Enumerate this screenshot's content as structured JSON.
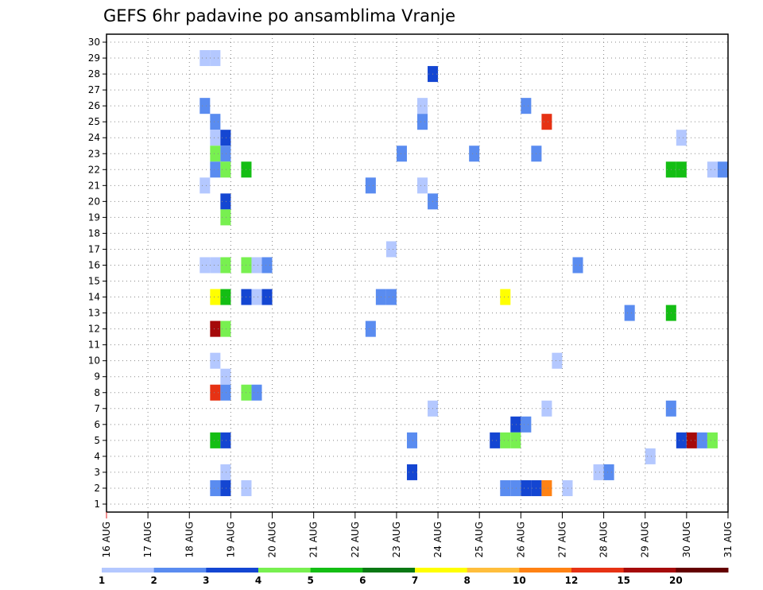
{
  "chart_data": {
    "type": "heatmap",
    "title": "GEFS 6hr padavine po ansamblima Vranje",
    "xlabel": "",
    "ylabel": "",
    "x_tick_labels": [
      "16 AUG",
      "17 AUG",
      "18 AUG",
      "19 AUG",
      "20 AUG",
      "21 AUG",
      "22 AUG",
      "23 AUG",
      "24 AUG",
      "25 AUG",
      "26 AUG",
      "27 AUG",
      "28 AUG",
      "29 AUG",
      "30 AUG",
      "31 AUG"
    ],
    "y_tick_labels": [
      "1",
      "2",
      "3",
      "4",
      "5",
      "6",
      "7",
      "8",
      "9",
      "10",
      "11",
      "12",
      "13",
      "14",
      "15",
      "16",
      "17",
      "18",
      "19",
      "20",
      "21",
      "22",
      "23",
      "24",
      "25",
      "26",
      "27",
      "28",
      "29",
      "30"
    ],
    "xlim_days": [
      16,
      31
    ],
    "ylim": [
      0.5,
      30.5
    ],
    "grid": true,
    "colorbar": {
      "placement": "bottom",
      "labels": [
        "1",
        "2",
        "3",
        "4",
        "5",
        "6",
        "7",
        "8",
        "10",
        "12",
        "15",
        "20"
      ],
      "colors": [
        "#b4c8ff",
        "#5a8cf0",
        "#1446d2",
        "#78f050",
        "#14be14",
        "#0a7814",
        "#ffff00",
        "#ffbe3c",
        "#ff8214",
        "#e63214",
        "#a50a0a",
        "#640000"
      ]
    },
    "cells": [
      [
        18.375,
        29,
        1
      ],
      [
        18.625,
        29,
        1
      ],
      [
        23.875,
        28,
        3
      ],
      [
        18.375,
        26,
        2
      ],
      [
        23.625,
        26,
        1
      ],
      [
        26.125,
        26,
        2
      ],
      [
        18.625,
        25,
        2
      ],
      [
        23.625,
        25,
        2
      ],
      [
        26.625,
        25,
        10
      ],
      [
        18.625,
        24,
        1
      ],
      [
        18.875,
        24,
        3
      ],
      [
        29.875,
        24,
        1
      ],
      [
        18.625,
        23,
        4
      ],
      [
        18.875,
        23,
        2
      ],
      [
        23.125,
        23,
        2
      ],
      [
        24.875,
        23,
        2
      ],
      [
        26.375,
        23,
        2
      ],
      [
        18.625,
        22,
        2
      ],
      [
        18.875,
        22,
        4
      ],
      [
        19.375,
        22,
        5
      ],
      [
        29.625,
        22,
        5
      ],
      [
        29.875,
        22,
        5
      ],
      [
        30.625,
        22,
        1
      ],
      [
        30.875,
        22,
        2
      ],
      [
        18.375,
        21,
        1
      ],
      [
        22.375,
        21,
        2
      ],
      [
        23.625,
        21,
        1
      ],
      [
        18.875,
        20,
        3
      ],
      [
        23.875,
        20,
        2
      ],
      [
        18.875,
        19,
        4
      ],
      [
        22.875,
        17,
        1
      ],
      [
        18.375,
        16,
        1
      ],
      [
        18.625,
        16,
        1
      ],
      [
        18.875,
        16,
        4
      ],
      [
        19.375,
        16,
        4
      ],
      [
        19.625,
        16,
        1
      ],
      [
        19.875,
        16,
        2
      ],
      [
        27.375,
        16,
        2
      ],
      [
        18.625,
        14,
        7
      ],
      [
        18.875,
        14,
        5
      ],
      [
        19.375,
        14,
        3
      ],
      [
        19.625,
        14,
        1
      ],
      [
        19.875,
        14,
        3
      ],
      [
        22.625,
        14,
        2
      ],
      [
        22.875,
        14,
        2
      ],
      [
        25.625,
        14,
        7
      ],
      [
        28.625,
        13,
        2
      ],
      [
        29.625,
        13,
        5
      ],
      [
        18.625,
        12,
        11
      ],
      [
        18.875,
        12,
        4
      ],
      [
        22.375,
        12,
        2
      ],
      [
        18.625,
        10,
        1
      ],
      [
        26.875,
        10,
        1
      ],
      [
        18.875,
        9,
        1
      ],
      [
        18.625,
        8,
        10
      ],
      [
        18.875,
        8,
        2
      ],
      [
        19.375,
        8,
        4
      ],
      [
        19.625,
        8,
        2
      ],
      [
        23.875,
        7,
        1
      ],
      [
        26.625,
        7,
        1
      ],
      [
        29.625,
        7,
        2
      ],
      [
        25.875,
        6,
        3
      ],
      [
        26.125,
        6,
        2
      ],
      [
        18.625,
        5,
        5
      ],
      [
        18.875,
        5,
        3
      ],
      [
        23.375,
        5,
        2
      ],
      [
        25.375,
        5,
        3
      ],
      [
        25.625,
        5,
        4
      ],
      [
        25.875,
        5,
        4
      ],
      [
        29.875,
        5,
        3
      ],
      [
        30.125,
        5,
        11
      ],
      [
        30.375,
        5,
        2
      ],
      [
        30.625,
        5,
        4
      ],
      [
        29.125,
        4,
        1
      ],
      [
        18.875,
        3,
        1
      ],
      [
        23.375,
        3,
        3
      ],
      [
        27.875,
        3,
        1
      ],
      [
        28.125,
        3,
        2
      ],
      [
        18.625,
        2,
        2
      ],
      [
        18.875,
        2,
        3
      ],
      [
        19.375,
        2,
        1
      ],
      [
        25.625,
        2,
        2
      ],
      [
        25.875,
        2,
        2
      ],
      [
        26.125,
        2,
        3
      ],
      [
        26.375,
        2,
        3
      ],
      [
        26.625,
        2,
        9
      ],
      [
        27.125,
        2,
        1
      ]
    ]
  }
}
